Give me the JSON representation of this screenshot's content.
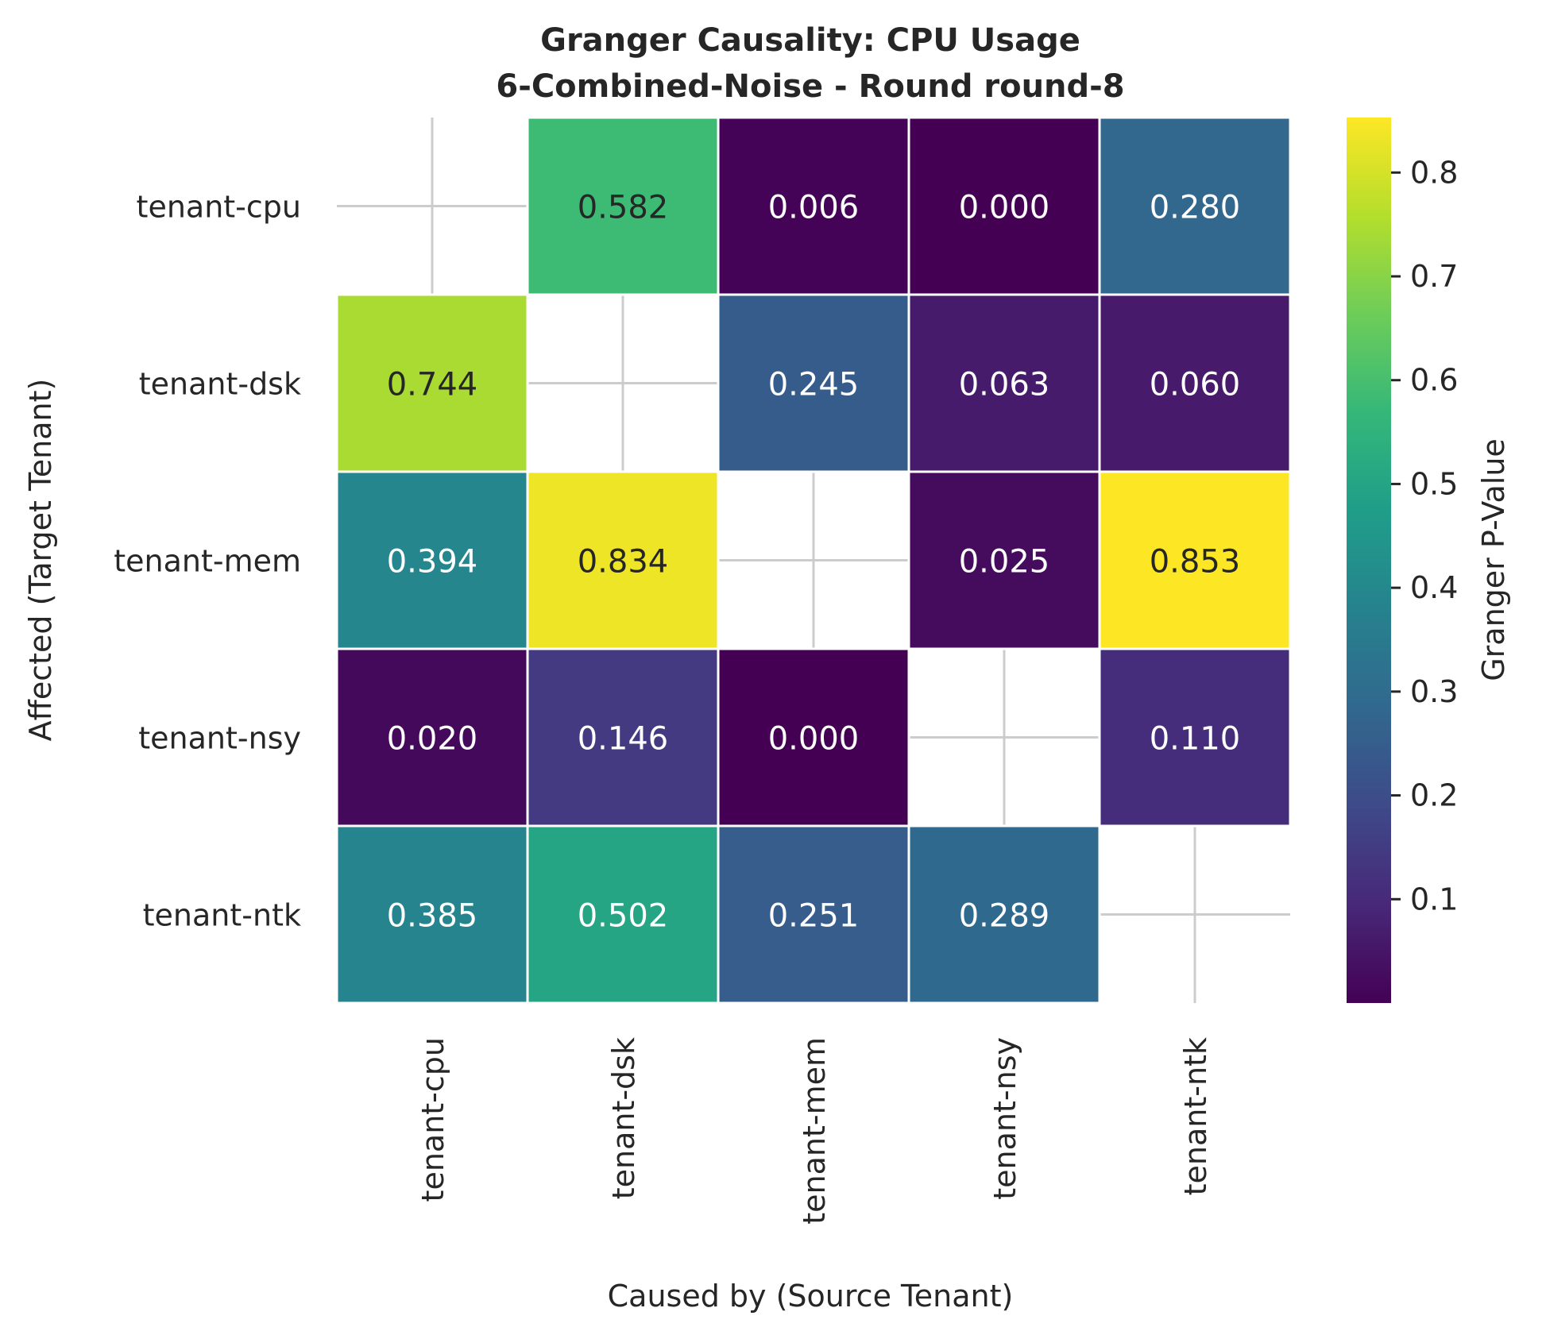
{
  "chart_data": {
    "type": "heatmap",
    "title_line1": "Granger Causality: CPU Usage",
    "title_line2": "6-Combined-Noise - Round round-8",
    "xlabel": "Caused by (Source Tenant)",
    "ylabel": "Affected (Target Tenant)",
    "x_categories": [
      "tenant-cpu",
      "tenant-dsk",
      "tenant-mem",
      "tenant-nsy",
      "tenant-ntk"
    ],
    "y_categories": [
      "tenant-cpu",
      "tenant-dsk",
      "tenant-mem",
      "tenant-nsy",
      "tenant-ntk"
    ],
    "values": [
      [
        null,
        0.582,
        0.006,
        0.0,
        0.28
      ],
      [
        0.744,
        null,
        0.245,
        0.063,
        0.06
      ],
      [
        0.394,
        0.834,
        null,
        0.025,
        0.853
      ],
      [
        0.02,
        0.146,
        0.0,
        null,
        0.11
      ],
      [
        0.385,
        0.502,
        0.251,
        0.289,
        null
      ]
    ],
    "colorbar": {
      "label": "Granger P-Value",
      "vmin": 0.0,
      "vmax": 0.853,
      "ticks": [
        0.1,
        0.2,
        0.3,
        0.4,
        0.5,
        0.6,
        0.7,
        0.8
      ],
      "tick_labels": [
        "0.1",
        "0.2",
        "0.3",
        "0.4",
        "0.5",
        "0.6",
        "0.7",
        "0.8"
      ],
      "colormap": "viridis"
    },
    "grid": true,
    "diagonal_masked": true
  }
}
